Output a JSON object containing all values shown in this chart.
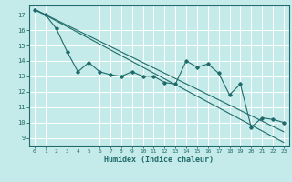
{
  "xlabel": "Humidex (Indice chaleur)",
  "bg_color": "#c5eaea",
  "line_color": "#1f6b6b",
  "grid_color": "#ffffff",
  "xlim": [
    -0.5,
    23.5
  ],
  "ylim": [
    8.5,
    17.6
  ],
  "yticks": [
    9,
    10,
    11,
    12,
    13,
    14,
    15,
    16,
    17
  ],
  "xticks": [
    0,
    1,
    2,
    3,
    4,
    5,
    6,
    7,
    8,
    9,
    10,
    11,
    12,
    13,
    14,
    15,
    16,
    17,
    18,
    19,
    20,
    21,
    22,
    23
  ],
  "data_x": [
    0,
    1,
    2,
    3,
    4,
    5,
    6,
    7,
    8,
    9,
    10,
    11,
    12,
    13,
    14,
    15,
    16,
    17,
    18,
    19,
    20,
    21,
    22,
    23
  ],
  "data_y": [
    17.3,
    17.0,
    16.1,
    14.6,
    13.3,
    13.9,
    13.3,
    13.1,
    13.0,
    13.3,
    13.0,
    13.0,
    12.6,
    12.5,
    14.0,
    13.6,
    13.8,
    13.2,
    11.8,
    12.5,
    9.7,
    10.3,
    10.2,
    10.0
  ],
  "line1_y_start": 17.35,
  "line1_y_end": 8.7,
  "line2_y_start": 17.35,
  "line2_y_end": 9.4
}
